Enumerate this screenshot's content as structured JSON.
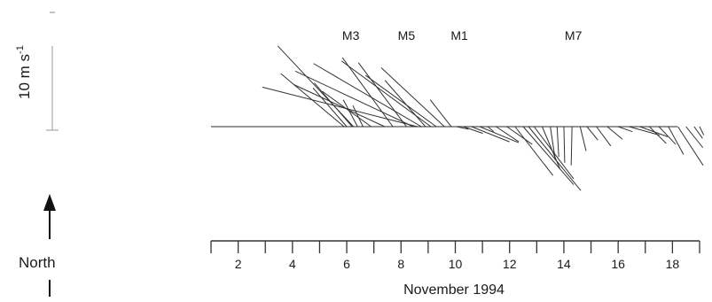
{
  "chart_data": {
    "type": "stick-plot",
    "title": "",
    "xlabel": "November 1994",
    "ylabel": "",
    "x_ticks": [
      "2",
      "4",
      "6",
      "8",
      "10",
      "12",
      "14",
      "16",
      "18"
    ],
    "xlim": [
      1.0,
      19.0
    ],
    "scale_bar": {
      "label": "10 m s-1",
      "label_text": "10 m s",
      "label_sup": "-1",
      "value_ms": 10
    },
    "north_arrow_label": "North",
    "mooring_labels": [
      {
        "text": "M3",
        "day": 6.15
      },
      {
        "text": "M5",
        "day": 8.2
      },
      {
        "text": "M1",
        "day": 10.15
      },
      {
        "text": "M7",
        "day": 14.35
      }
    ],
    "units": "m s-1",
    "vectors": [
      {
        "day": 5.9,
        "u": -7.5,
        "v": 6.3
      },
      {
        "day": 6.0,
        "u": -4.0,
        "v": 4.6
      },
      {
        "day": 6.2,
        "u": -4.5,
        "v": 5.2
      },
      {
        "day": 6.25,
        "u": -9.0,
        "v": 9.6
      },
      {
        "day": 6.4,
        "u": -1.7,
        "v": 3.2
      },
      {
        "day": 6.6,
        "u": -1.2,
        "v": 2.5
      },
      {
        "day": 6.9,
        "u": -5.8,
        "v": 4.2
      },
      {
        "day": 7.4,
        "u": -10.8,
        "v": 5.0
      },
      {
        "day": 7.7,
        "u": -6.0,
        "v": 8.2
      },
      {
        "day": 8.2,
        "u": -5.7,
        "v": 7.6
      },
      {
        "day": 8.45,
        "u": -14.0,
        "v": 6.6
      },
      {
        "day": 8.6,
        "u": -18.4,
        "v": 4.7
      },
      {
        "day": 8.75,
        "u": -12.8,
        "v": 7.5
      },
      {
        "day": 8.9,
        "u": -4.8,
        "v": 5.5
      },
      {
        "day": 9.1,
        "u": -10.6,
        "v": 7.8
      },
      {
        "day": 9.3,
        "u": -8.4,
        "v": 6.1
      },
      {
        "day": 9.6,
        "u": -7.5,
        "v": 7.0
      },
      {
        "day": 9.85,
        "u": -2.5,
        "v": 3.2
      },
      {
        "day": 10.05,
        "u": 1.4,
        "v": -0.3
      },
      {
        "day": 10.3,
        "u": 2.3,
        "v": -0.8
      },
      {
        "day": 10.6,
        "u": 4.5,
        "v": -1.8
      },
      {
        "day": 10.9,
        "u": 4.6,
        "v": -1.9
      },
      {
        "day": 11.2,
        "u": 0.7,
        "v": -0.6
      },
      {
        "day": 11.5,
        "u": 2.7,
        "v": -1.8
      },
      {
        "day": 11.9,
        "u": 3.0,
        "v": -2.1
      },
      {
        "day": 12.2,
        "u": 4.5,
        "v": -5.8
      },
      {
        "day": 12.5,
        "u": 6.0,
        "v": -6.9
      },
      {
        "day": 12.7,
        "u": 6.2,
        "v": -7.6
      },
      {
        "day": 12.9,
        "u": 4.7,
        "v": -6.2
      },
      {
        "day": 13.2,
        "u": 2.1,
        "v": -5.0
      },
      {
        "day": 13.5,
        "u": 0.6,
        "v": -4.0
      },
      {
        "day": 13.75,
        "u": 0.2,
        "v": -3.6
      },
      {
        "day": 14.0,
        "u": 0.1,
        "v": -4.3
      },
      {
        "day": 14.3,
        "u": -0.1,
        "v": -4.6
      },
      {
        "day": 14.6,
        "u": 0.7,
        "v": -2.9
      },
      {
        "day": 14.85,
        "u": 1.3,
        "v": -1.6
      },
      {
        "day": 15.2,
        "u": 1.7,
        "v": -2.3
      },
      {
        "day": 15.6,
        "u": 1.8,
        "v": -1.5
      },
      {
        "day": 16.0,
        "u": 1.7,
        "v": -0.6
      },
      {
        "day": 16.4,
        "u": 3.6,
        "v": -1.0
      },
      {
        "day": 16.8,
        "u": 3.3,
        "v": -1.2
      },
      {
        "day": 17.15,
        "u": 2.0,
        "v": -2.0
      },
      {
        "day": 17.5,
        "u": 2.0,
        "v": -2.1
      },
      {
        "day": 17.85,
        "u": 1.8,
        "v": -3.3
      },
      {
        "day": 18.2,
        "u": 3.0,
        "v": -4.6
      },
      {
        "day": 18.5,
        "u": 2.0,
        "v": -2.5
      },
      {
        "day": 18.8,
        "u": 1.0,
        "v": -1.4
      },
      {
        "day": 19.0,
        "u": 0.5,
        "v": -1.0
      }
    ]
  }
}
